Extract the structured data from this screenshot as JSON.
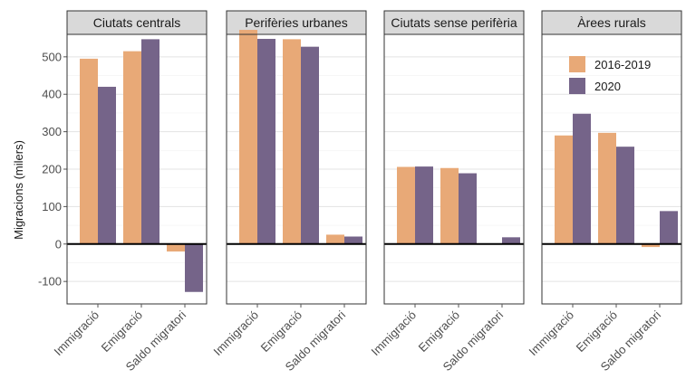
{
  "chart_data": {
    "type": "bar",
    "ylabel": "Migracions (milers)",
    "xlabel": "",
    "ylim": [
      -160,
      560
    ],
    "yticks": [
      -100,
      0,
      100,
      200,
      300,
      400,
      500
    ],
    "grid": true,
    "legend_position": "top-right",
    "categories": [
      "Immigració",
      "Emigració",
      "Saldo migratori"
    ],
    "colors": {
      "2016-2019": "#E8A977",
      "2020": "#756489"
    },
    "panels": [
      {
        "title": "Ciutats centrals",
        "series": [
          {
            "name": "2016-2019",
            "values": [
              495,
              515,
              -20
            ]
          },
          {
            "name": "2020",
            "values": [
              420,
              547,
              -128
            ]
          }
        ]
      },
      {
        "title": "Perifèries urbanes",
        "series": [
          {
            "name": "2016-2019",
            "values": [
              572,
              547,
              25
            ]
          },
          {
            "name": "2020",
            "values": [
              548,
              527,
              20
            ]
          }
        ]
      },
      {
        "title": "Ciutats sense perifèria",
        "series": [
          {
            "name": "2016-2019",
            "values": [
              206,
              203,
              0
            ]
          },
          {
            "name": "2020",
            "values": [
              207,
              189,
              18
            ]
          }
        ]
      },
      {
        "title": "Àrees rurals",
        "series": [
          {
            "name": "2016-2019",
            "values": [
              290,
              297,
              -8
            ]
          },
          {
            "name": "2020",
            "values": [
              348,
              260,
              88
            ]
          }
        ]
      }
    ]
  }
}
